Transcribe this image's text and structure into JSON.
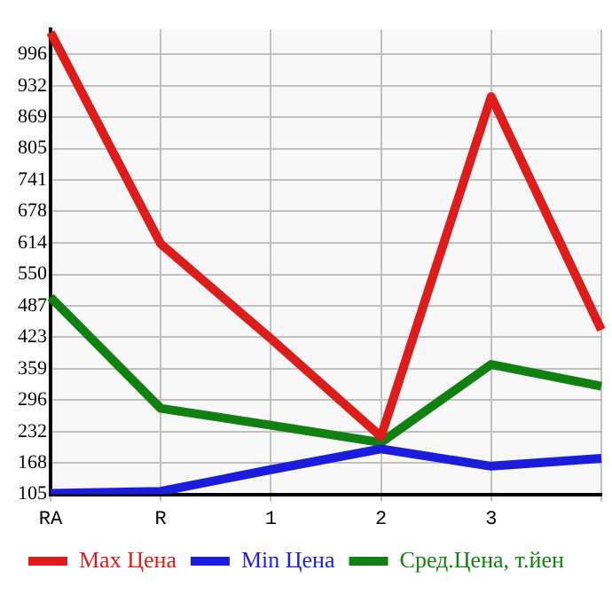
{
  "chart_data": {
    "type": "line",
    "categories": [
      "RA",
      "R",
      "1",
      "2",
      "3",
      null
    ],
    "series": [
      {
        "name": "Max Цена",
        "color": "#dd1c1c",
        "values": [
          1040,
          612,
          420,
          222,
          910,
          438
        ]
      },
      {
        "name": "Min Цена",
        "color": "#1c1cdd",
        "values": [
          107,
          111,
          155,
          197,
          162,
          178
        ]
      },
      {
        "name": "Сред.Цена, т.йен",
        "color": "#108010",
        "values": [
          504,
          279,
          245,
          210,
          368,
          324
        ]
      }
    ],
    "ylim": [
      105,
      1046
    ],
    "yticks": [
      105,
      168,
      232,
      296,
      359,
      423,
      487,
      550,
      614,
      678,
      741,
      805,
      869,
      932,
      996
    ],
    "grid": true,
    "legend": "bottom",
    "marker": "none",
    "line_style": "solid"
  }
}
